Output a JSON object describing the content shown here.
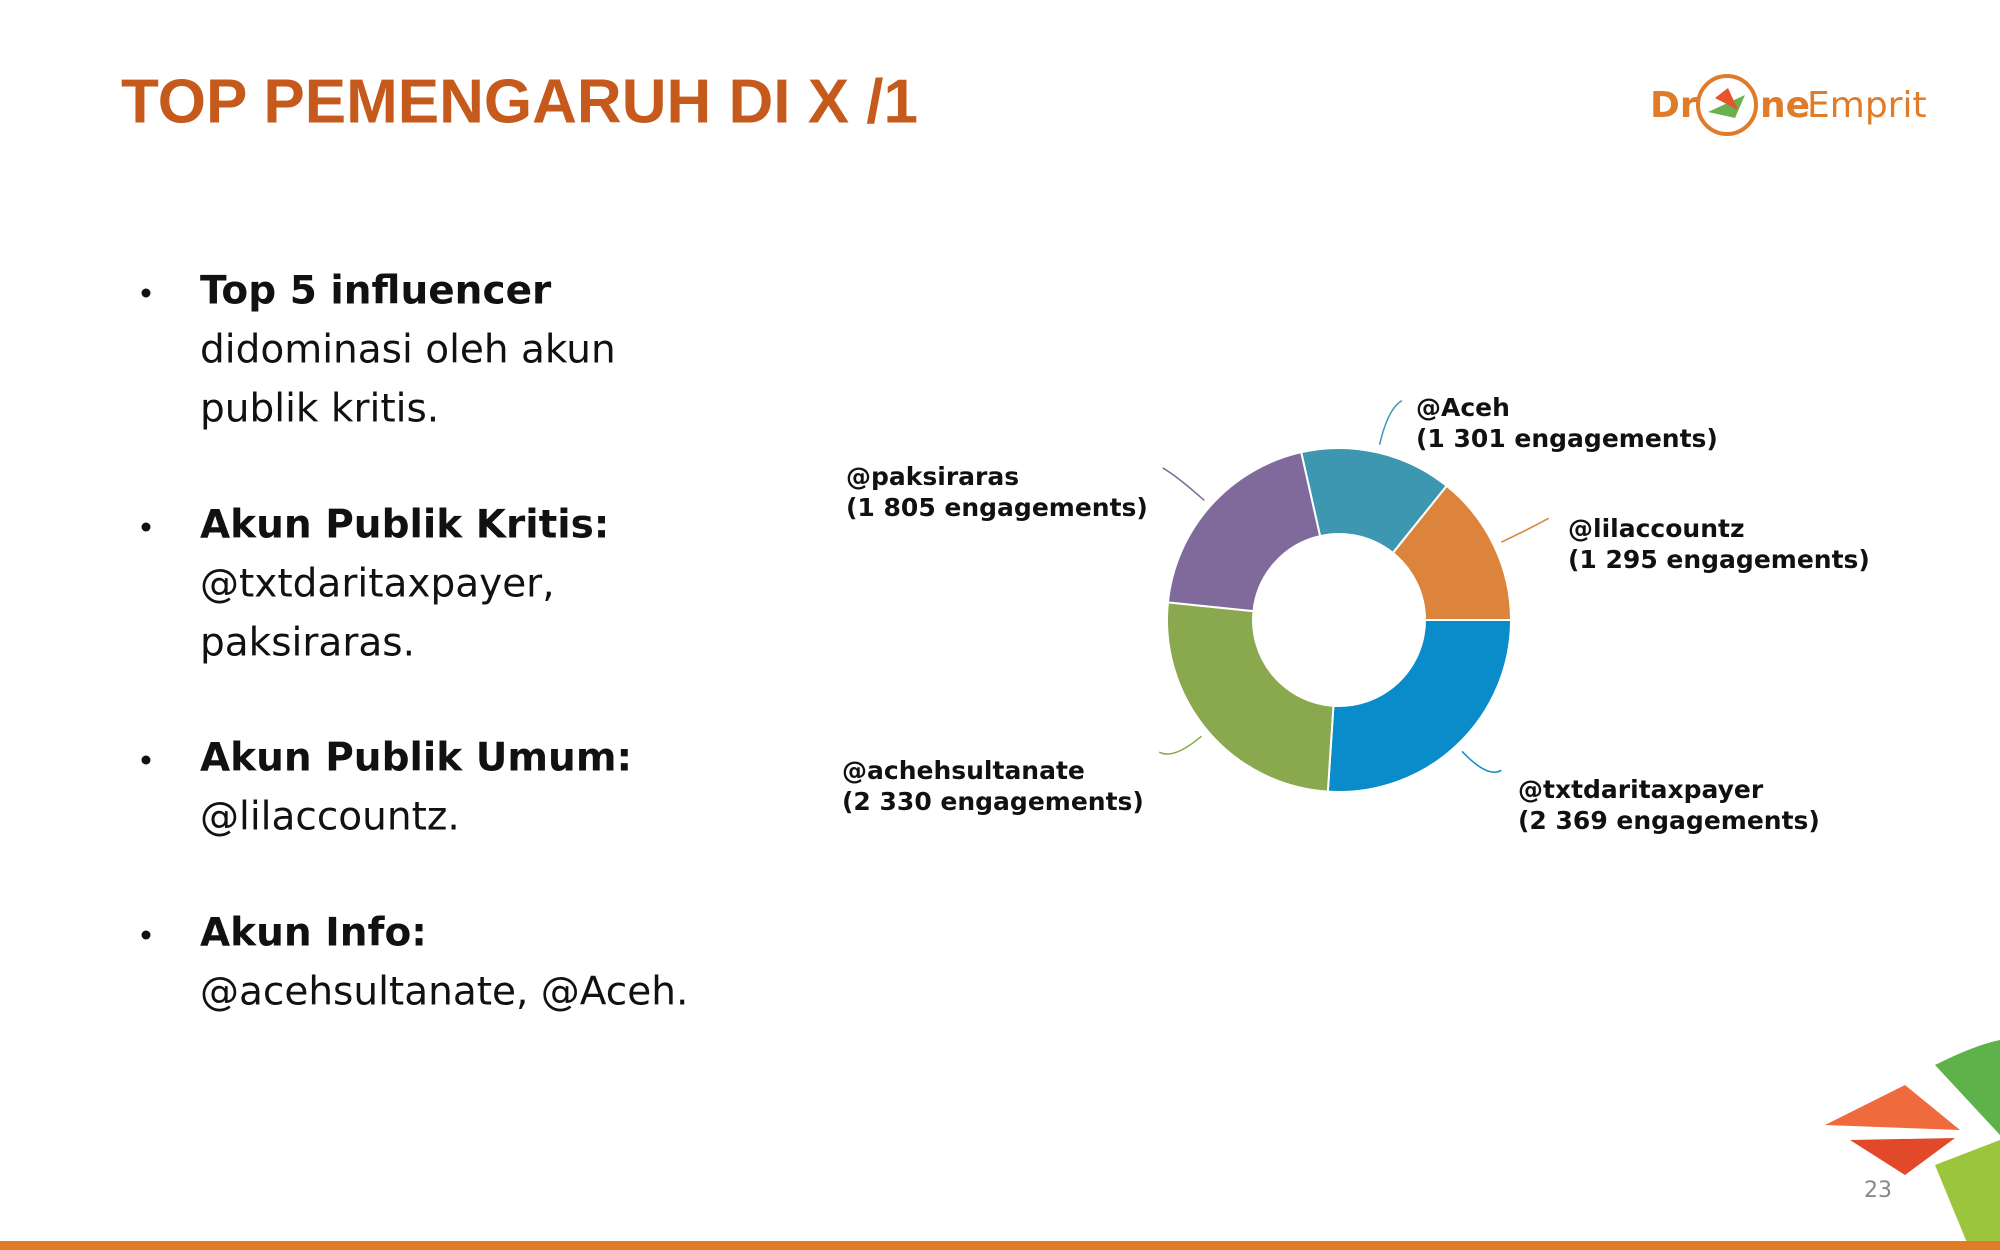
{
  "header": {
    "title": "TOP PEMENGARUH DI X /1",
    "logo": [
      "Dr",
      "ne",
      "Emprit"
    ]
  },
  "bullets": [
    {
      "bold": "Top 5 influencer",
      "lines": [
        "didominasi oleh akun",
        "publik kritis."
      ]
    },
    {
      "bold": "Akun Publik Kritis:",
      "lines": [
        "@txtdaritaxpayer,",
        "paksiraras."
      ]
    },
    {
      "bold": "Akun Publik Umum:",
      "lines": [
        "@lilaccountz."
      ]
    },
    {
      "bold": "Akun Info:",
      "lines": [
        "@acehsultanate, @Aceh."
      ]
    }
  ],
  "chart_data": {
    "type": "donut",
    "categories": [
      "@Aceh",
      "@lilaccountz",
      "@txtdaritaxpayer",
      "@achehsultanate",
      "@paksiraras"
    ],
    "values": [
      1301,
      1295,
      2369,
      2330,
      1805
    ],
    "value_labels": [
      "(1 301 engagements)",
      "(1 295 engagements)",
      "(2 369 engagements)",
      "(2 330 engagements)",
      "(1 805 engagements)"
    ],
    "colors": [
      "#3d97b0",
      "#dc843b",
      "#098cc9",
      "#8aa84e",
      "#806a9b"
    ]
  },
  "footer": {
    "page": "23"
  }
}
